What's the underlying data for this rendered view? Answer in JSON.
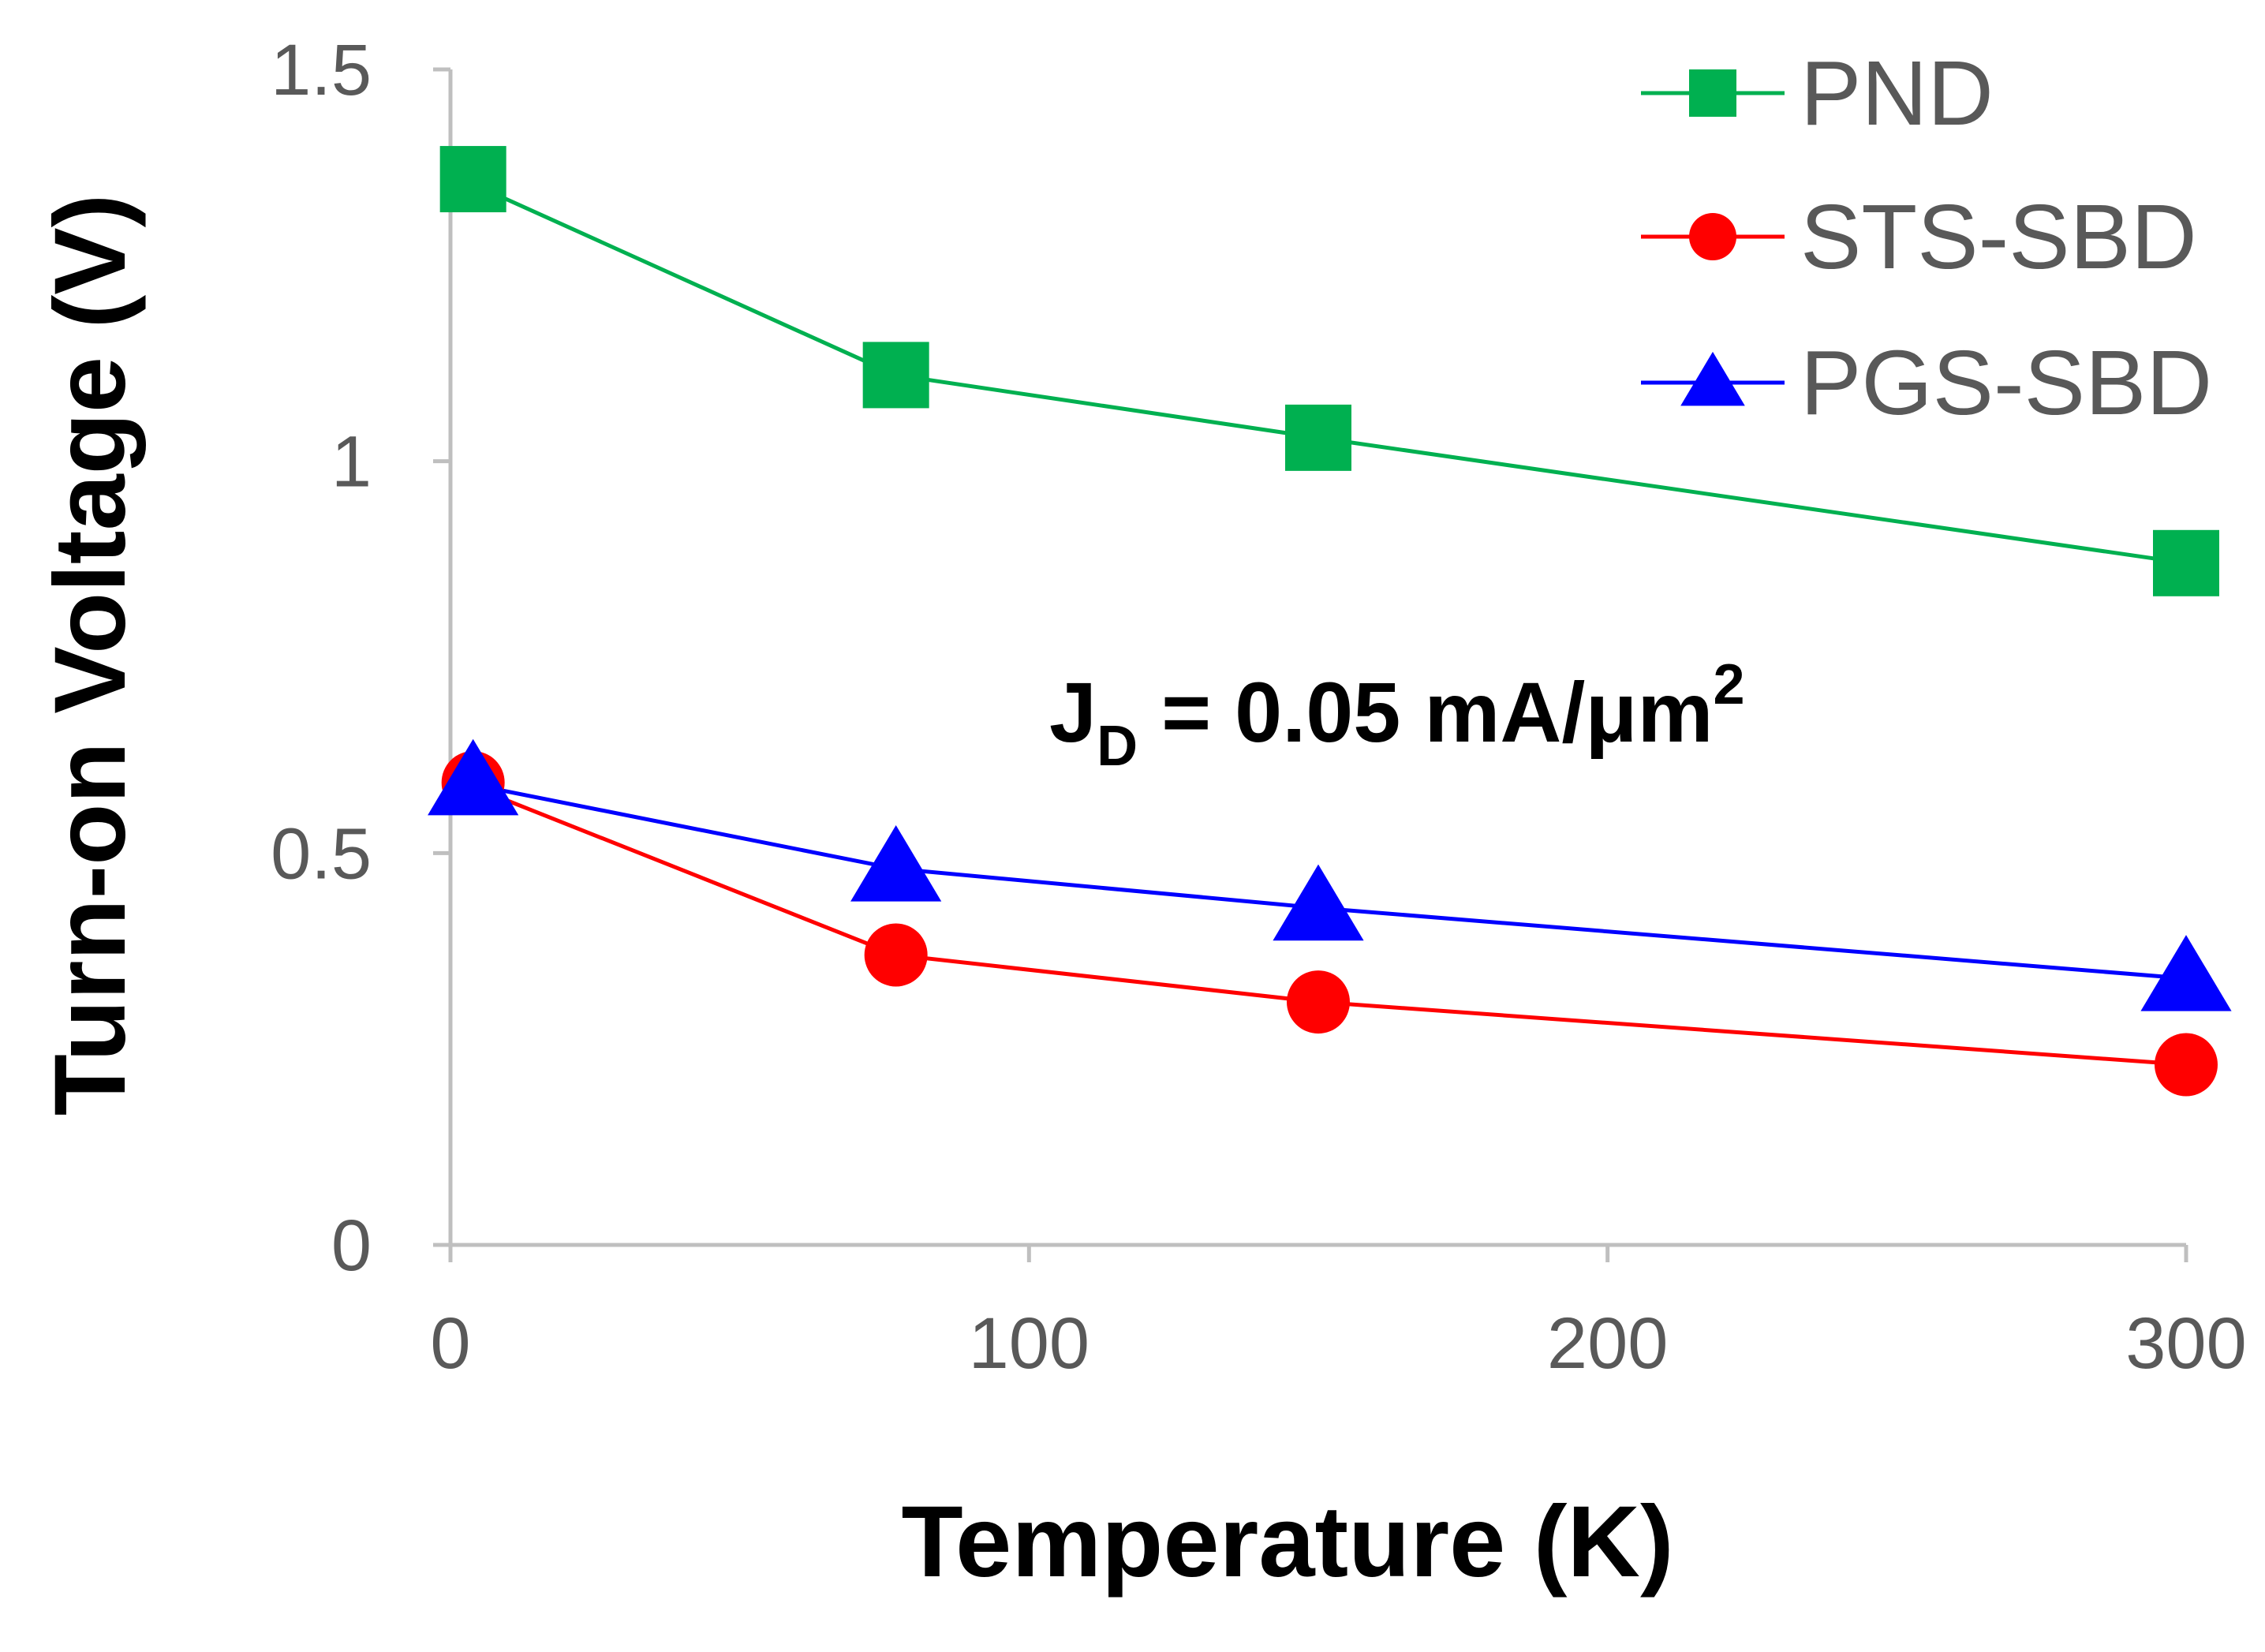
{
  "chart_data": {
    "type": "line",
    "title": "",
    "xlabel": "Temperature (K)",
    "ylabel": "Turn-on Voltage (V)",
    "xlim": [
      0,
      300
    ],
    "ylim": [
      0,
      1.5
    ],
    "xticks": [
      "0",
      "100",
      "200",
      "300"
    ],
    "yticks": [
      "0",
      "0.5",
      "1",
      "1.5"
    ],
    "grid": false,
    "legend_position": "top-right",
    "annotation": {
      "main": "J",
      "sub": "D",
      "rest": " = 0.05 mA/μm",
      "sup": "2"
    },
    "series": [
      {
        "name": "PND",
        "marker": "square",
        "color": "#00b050",
        "x": [
          2,
          77,
          150,
          300
        ],
        "y": [
          1.36,
          1.11,
          1.03,
          0.87
        ]
      },
      {
        "name": "STS-SBD",
        "marker": "circle",
        "color": "#ff0000",
        "x": [
          2,
          77,
          150,
          300
        ],
        "y": [
          0.59,
          0.37,
          0.31,
          0.23
        ]
      },
      {
        "name": "PGS-SBD",
        "marker": "triangle",
        "color": "#0000ff",
        "x": [
          2,
          77,
          150,
          300
        ],
        "y": [
          0.59,
          0.48,
          0.43,
          0.34
        ]
      }
    ]
  }
}
